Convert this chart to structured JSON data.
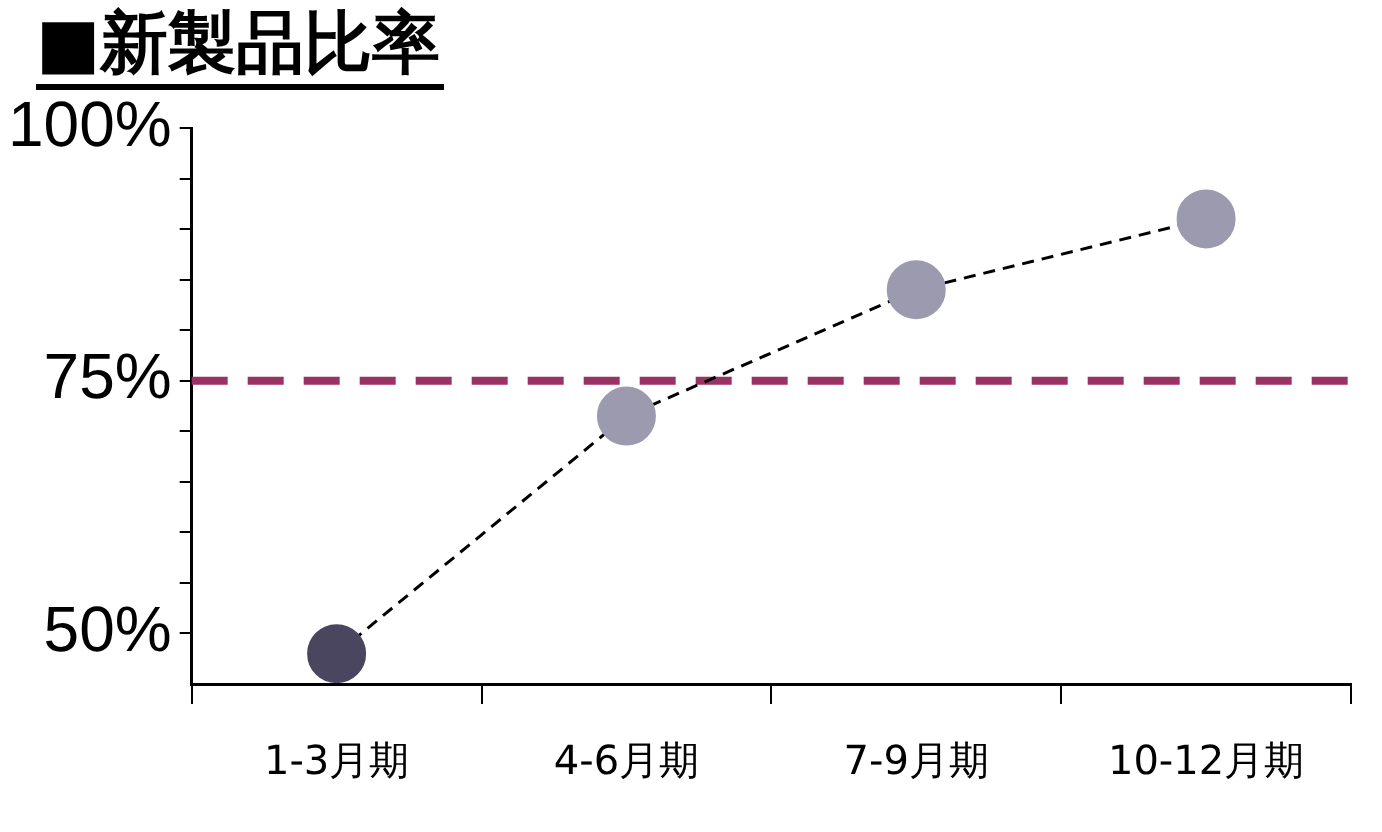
{
  "chart_data": {
    "type": "line",
    "title": "■新製品比率",
    "categories": [
      "1-3月期",
      "4-6月期",
      "7-9月期",
      "10-12月期"
    ],
    "series": [
      {
        "color": "#000000",
        "colors": [
          "#4a4660",
          "#9c9aae",
          "#9c9aae",
          "#9c9aae"
        ],
        "values": [
          48,
          71.5,
          84,
          91
        ]
      }
    ],
    "ylim": [
      45,
      100
    ],
    "yticks": [
      {
        "value": 50,
        "label": "50%"
      },
      {
        "value": 55,
        "label": null
      },
      {
        "value": 60,
        "label": null
      },
      {
        "value": 65,
        "label": null
      },
      {
        "value": 70,
        "label": null
      },
      {
        "value": 75,
        "label": "75%"
      },
      {
        "value": 80,
        "label": null
      },
      {
        "value": 85,
        "label": null
      },
      {
        "value": 90,
        "label": null
      },
      {
        "value": 95,
        "label": null
      },
      {
        "value": 100,
        "label": "100%"
      }
    ],
    "ref_lines": [
      {
        "axis": "y",
        "value": 75,
        "color": "#993366",
        "line_style": "dashed"
      }
    ],
    "marker": "circle",
    "line_style": "dashed"
  }
}
